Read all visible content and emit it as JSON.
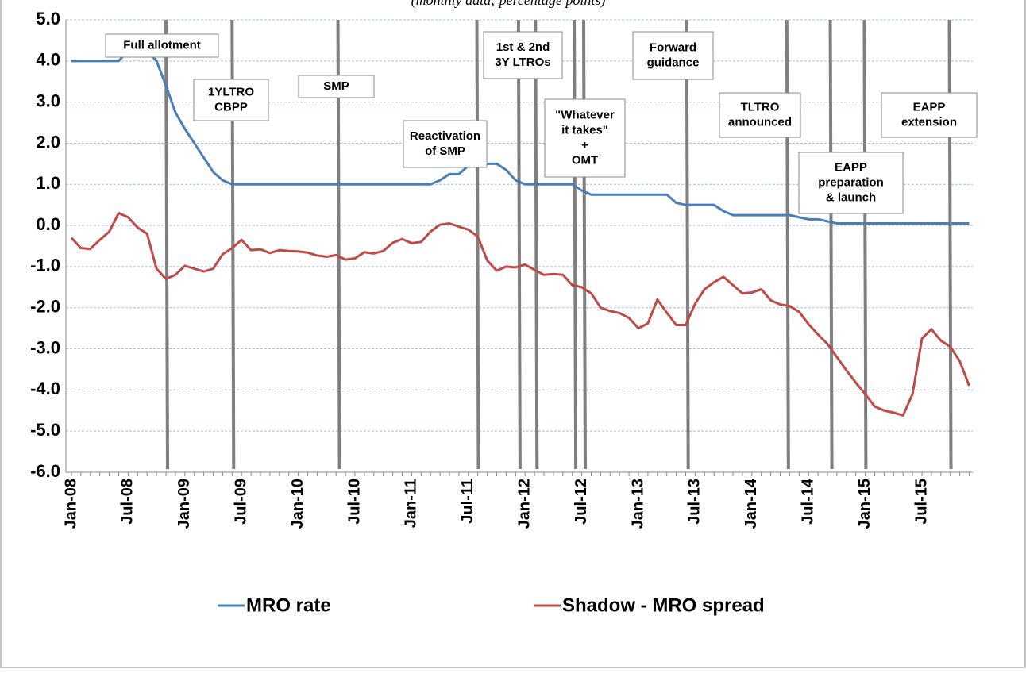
{
  "chart_data": {
    "type": "line",
    "subtitle": "(monthly data; percentage points)",
    "categories": [
      "Jan-08",
      null,
      null,
      null,
      null,
      null,
      "Jul-08",
      null,
      null,
      null,
      null,
      null,
      "Jan-09",
      null,
      null,
      null,
      null,
      null,
      "Jul-09",
      null,
      null,
      null,
      null,
      null,
      "Jan-10",
      null,
      null,
      null,
      null,
      null,
      "Jul-10",
      null,
      null,
      null,
      null,
      null,
      "Jan-11",
      null,
      null,
      null,
      null,
      null,
      "Jul-11",
      null,
      null,
      null,
      null,
      null,
      "Jan-12",
      null,
      null,
      null,
      null,
      null,
      "Jul-12",
      null,
      null,
      null,
      null,
      null,
      "Jan-13",
      null,
      null,
      null,
      null,
      null,
      "Jul-13",
      null,
      null,
      null,
      null,
      null,
      "Jan-14",
      null,
      null,
      null,
      null,
      null,
      "Jul-14",
      null,
      null,
      null,
      null,
      null,
      "Jan-15",
      null,
      null,
      null,
      null,
      null,
      "Jul-15",
      null,
      null,
      null,
      null,
      null
    ],
    "series": [
      {
        "name": "MRO rate",
        "color": "#4a7ebb",
        "values": [
          4,
          4,
          4,
          4,
          4,
          4,
          4.25,
          4.25,
          4.25,
          4,
          3.4,
          2.75,
          2.35,
          2,
          1.65,
          1.3,
          1.1,
          1,
          1,
          1,
          1,
          1,
          1,
          1,
          1,
          1,
          1,
          1,
          1,
          1,
          1,
          1,
          1,
          1,
          1,
          1,
          1,
          1,
          1,
          1.1,
          1.25,
          1.25,
          1.45,
          1.5,
          1.5,
          1.5,
          1.35,
          1.1,
          1,
          1,
          1,
          1,
          1,
          1,
          0.85,
          0.75,
          0.75,
          0.75,
          0.75,
          0.75,
          0.75,
          0.75,
          0.75,
          0.75,
          0.55,
          0.5,
          0.5,
          0.5,
          0.5,
          0.35,
          0.25,
          0.25,
          0.25,
          0.25,
          0.25,
          0.25,
          0.25,
          0.2,
          0.15,
          0.15,
          0.1,
          0.05,
          0.05,
          0.05,
          0.05,
          0.05,
          0.05,
          0.05,
          0.05,
          0.05,
          0.05,
          0.05,
          0.05,
          0.05,
          0.05,
          0.05
        ]
      },
      {
        "name": "Shadow - MRO spread",
        "color": "#be4b48",
        "values": [
          -0.3,
          -0.55,
          -0.57,
          -0.35,
          -0.15,
          0.3,
          0.2,
          -0.05,
          -0.2,
          -1.05,
          -1.3,
          -1.2,
          -0.98,
          -1.05,
          -1.12,
          -1.05,
          -0.7,
          -0.55,
          -0.35,
          -0.6,
          -0.58,
          -0.67,
          -0.6,
          -0.62,
          -0.63,
          -0.66,
          -0.73,
          -0.76,
          -0.72,
          -0.83,
          -0.8,
          -0.65,
          -0.68,
          -0.62,
          -0.42,
          -0.33,
          -0.43,
          -0.4,
          -0.15,
          0.02,
          0.05,
          -0.03,
          -0.1,
          -0.27,
          -0.85,
          -1.1,
          -1,
          -1.02,
          -0.95,
          -1.08,
          -1.2,
          -1.18,
          -1.2,
          -1.45,
          -1.5,
          -1.65,
          -2,
          -2.08,
          -2.13,
          -2.25,
          -2.5,
          -2.38,
          -1.8,
          -2.12,
          -2.42,
          -2.42,
          -1.9,
          -1.55,
          -1.38,
          -1.25,
          -1.45,
          -1.65,
          -1.63,
          -1.55,
          -1.82,
          -1.92,
          -1.96,
          -2.1,
          -2.4,
          -2.65,
          -2.88,
          -3.2,
          -3.52,
          -3.82,
          -4.1,
          -4.4,
          -4.5,
          -4.55,
          -4.62,
          -4.1,
          -2.75,
          -2.52,
          -2.8,
          -2.95,
          -3.3,
          -3.9
        ]
      }
    ],
    "ylim": [
      -6,
      5
    ],
    "yticks": [
      {
        "value": -6,
        "label": "-6.0"
      },
      {
        "value": -5,
        "label": "-5.0"
      },
      {
        "value": -4,
        "label": "-4.0"
      },
      {
        "value": -3,
        "label": "-3.0"
      },
      {
        "value": -2,
        "label": "-2.0"
      },
      {
        "value": -1,
        "label": "-1.0"
      },
      {
        "value": 0,
        "label": "0.0"
      },
      {
        "value": 1,
        "label": "1.0"
      },
      {
        "value": 2,
        "label": "2.0"
      },
      {
        "value": 3,
        "label": "3.0"
      },
      {
        "value": 4,
        "label": "4.0"
      },
      {
        "value": 5,
        "label": "5.0"
      }
    ],
    "grid": true,
    "events": [
      {
        "lines": [
          "Full allotment"
        ],
        "x": [
          10
        ]
      },
      {
        "lines": [
          "1YLTRO",
          "CBPP"
        ],
        "x": [
          17
        ]
      },
      {
        "lines": [
          "SMP"
        ],
        "x": [
          28.2
        ]
      },
      {
        "lines": [
          "Reactivation",
          "of SMP"
        ],
        "x": [
          42.9
        ]
      },
      {
        "lines": [
          "1st & 2nd",
          "3Y LTROs"
        ],
        "x": [
          47.3,
          49.1
        ]
      },
      {
        "lines": [
          "\"Whatever",
          "it takes\"",
          "+",
          "OMT"
        ],
        "x": [
          53.2,
          54.2
        ]
      },
      {
        "lines": [
          "Forward",
          "guidance"
        ],
        "x": [
          65.1
        ]
      },
      {
        "lines": [
          "TLTRO",
          "announced"
        ],
        "x": [
          75.7
        ]
      },
      {
        "lines": [
          "EAPP",
          "preparation",
          "& launch"
        ],
        "x": [
          80.3,
          83.9
        ]
      },
      {
        "lines": [
          "EAPP",
          "extension"
        ],
        "x": [
          92.9
        ]
      }
    ]
  }
}
